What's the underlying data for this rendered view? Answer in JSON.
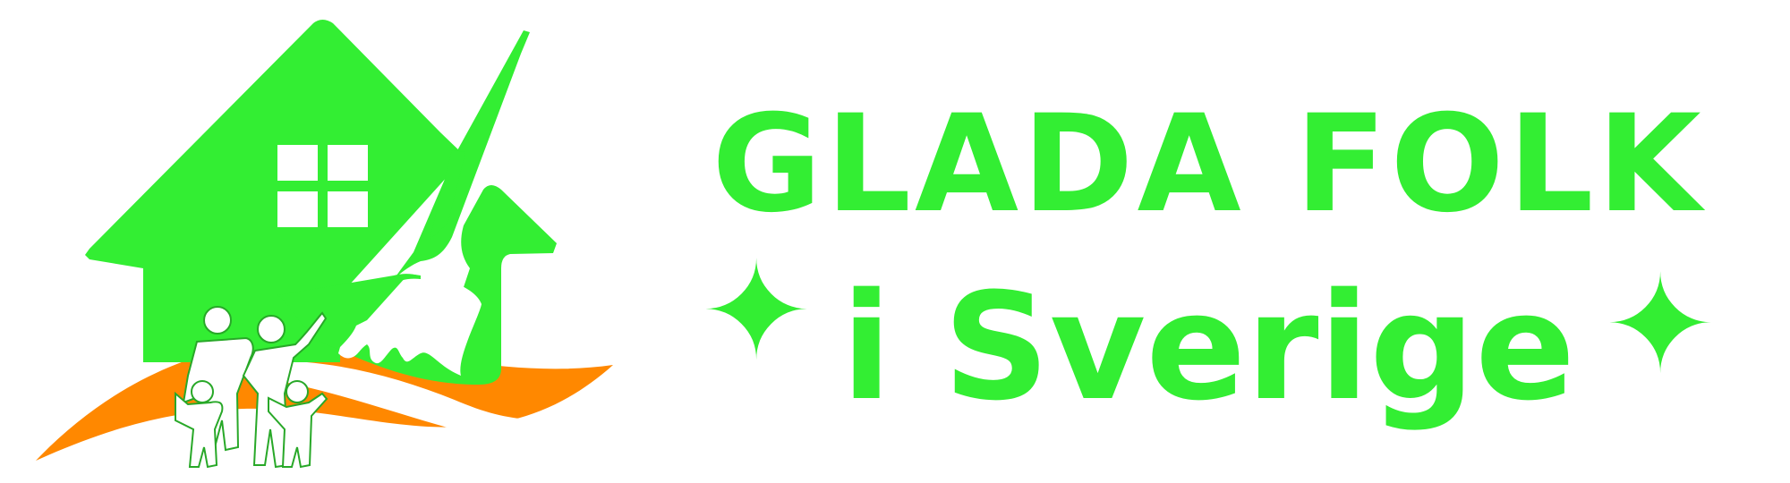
{
  "brand": {
    "title": "GLADA FOLK",
    "subtitle": "i Sverige",
    "ornament_glyph": "✦"
  },
  "colors": {
    "green": "#33ee33",
    "orange": "#ff8800",
    "white": "#ffffff",
    "outline": "#28a828"
  },
  "emblem": {
    "icons": [
      "house-icon",
      "broom-icon",
      "cleaning-hand-icon",
      "wave-icon",
      "family-icon"
    ]
  }
}
